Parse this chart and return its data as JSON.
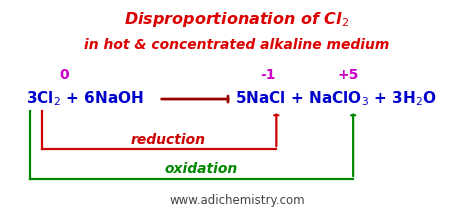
{
  "title_line1": "Disproportionation of Cl$_2$",
  "title_line2": "in hot & concentrated alkaline medium",
  "title_color": "#dd0000",
  "bg_color": "#ffffff",
  "border_color": "#cc44cc",
  "equation_color": "#0000cc",
  "ox_state_color": "#cc00cc",
  "reduction_color": "#cc0000",
  "oxidation_color": "#008800",
  "arrow_main_color": "#990000",
  "website": "www.adichemistry.com",
  "website_color": "#444444",
  "eq_left": "3Cl$_2$ + 6NaOH",
  "eq_right": "5NaCl + NaClO$_3$ + 3H$_2$O",
  "ox0": "0",
  "ox_m1": "-1",
  "ox_p5": "+5",
  "reduction_label": "reduction",
  "oxidation_label": "oxidation"
}
